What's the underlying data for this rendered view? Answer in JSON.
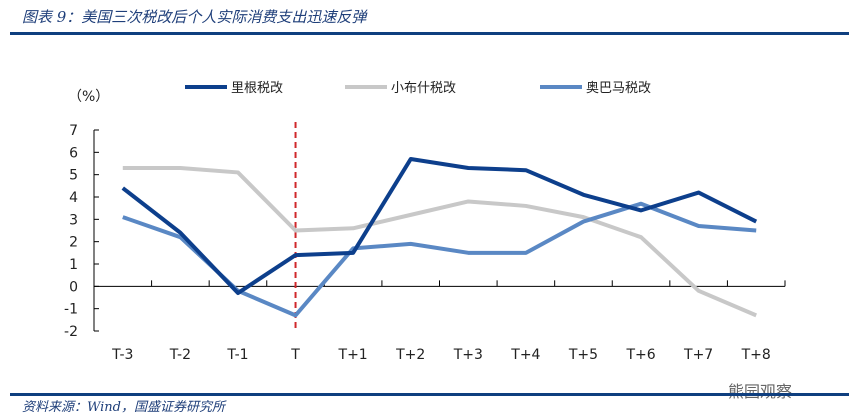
{
  "title": "图表 9：美国三次税改后个人实际消费支出迅速反弹",
  "source": "资料来源：Wind，国盛证券研究所",
  "watermark": "熊园观察",
  "colors": {
    "accent": "#0f3f7f",
    "reagan": "#0d3f8c",
    "bush": "#c8c8c8",
    "obama": "#5a88c4",
    "event": "#d0272b"
  },
  "chart_data": {
    "type": "line",
    "title": "",
    "ylabel": "（%）",
    "xlabel": "",
    "ylim": [
      -2,
      7
    ],
    "yticks": [
      "7",
      "6",
      "5",
      "4",
      "3",
      "2",
      "1",
      "0",
      "-1",
      "-2"
    ],
    "categories": [
      "T-3",
      "T-2",
      "T-1",
      "T",
      "T+1",
      "T+2",
      "T+3",
      "T+4",
      "T+5",
      "T+6",
      "T+7",
      "T+8"
    ],
    "event_marker": "T",
    "legend_position": "top",
    "series": [
      {
        "name": "里根税改",
        "values": [
          4.4,
          2.4,
          -0.3,
          1.4,
          1.5,
          5.7,
          5.3,
          5.2,
          4.1,
          3.4,
          4.2,
          2.9
        ]
      },
      {
        "name": "小布什税改",
        "values": [
          5.3,
          5.3,
          5.1,
          2.5,
          2.6,
          3.2,
          3.8,
          3.6,
          3.1,
          2.2,
          -0.2,
          -1.3
        ]
      },
      {
        "name": "奥巴马税改",
        "values": [
          3.1,
          2.2,
          -0.2,
          -1.3,
          1.7,
          1.9,
          1.5,
          1.5,
          2.9,
          3.7,
          2.7,
          2.5
        ]
      }
    ]
  }
}
